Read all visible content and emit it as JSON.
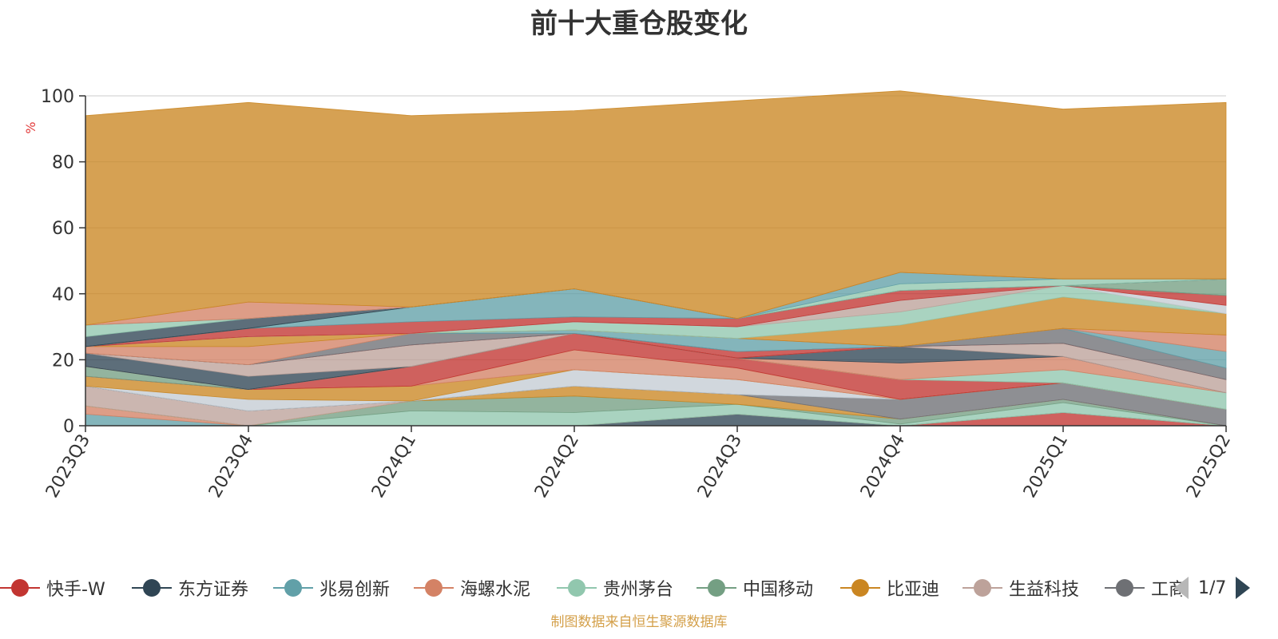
{
  "page": {
    "title": "前十大重仓股变化",
    "source_note": "制图数据来自恒生聚源数据库"
  },
  "legend": {
    "items": [
      {
        "label": "快手-W",
        "color": "#c23531"
      },
      {
        "label": "东方证券",
        "color": "#2f4554"
      },
      {
        "label": "兆易创新",
        "color": "#61a0a8"
      },
      {
        "label": "海螺水泥",
        "color": "#d48265"
      },
      {
        "label": "贵州茅台",
        "color": "#91c7ae"
      },
      {
        "label": "中国移动",
        "color": "#749f83"
      },
      {
        "label": "比亚迪",
        "color": "#ca8622"
      },
      {
        "label": "生益科技",
        "color": "#bda29a"
      },
      {
        "label": "工商",
        "color": "#6e7074"
      }
    ],
    "page_indicator": "1/7"
  },
  "chart_data": {
    "type": "area",
    "title": "前十大重仓股变化",
    "ylabel": "%",
    "ylim": [
      0,
      100
    ],
    "yticks": [
      0,
      20,
      40,
      60,
      80,
      100
    ],
    "grid": true,
    "stacked": true,
    "categories": [
      "2023Q3",
      "2023Q4",
      "2024Q1",
      "2024Q2",
      "2024Q3",
      "2024Q4",
      "2025Q1",
      "2025Q2"
    ],
    "series": [
      {
        "color": "#c23531",
        "values": [
          0,
          0,
          0,
          0,
          0,
          0,
          4,
          0
        ]
      },
      {
        "color": "#2f4554",
        "values": [
          0,
          0,
          0,
          0,
          3.5,
          0,
          0,
          0
        ]
      },
      {
        "color": "#61a0a8",
        "values": [
          3.5,
          0,
          0,
          0,
          0,
          0,
          0,
          0
        ]
      },
      {
        "color": "#d48265",
        "values": [
          2.5,
          0,
          0,
          0,
          0,
          0,
          0,
          0
        ]
      },
      {
        "color": "#91c7ae",
        "values": [
          0,
          0,
          4.5,
          4,
          3,
          0.5,
          3,
          0
        ]
      },
      {
        "color": "#749f83",
        "values": [
          0,
          0,
          3,
          5,
          0,
          1.5,
          1,
          0
        ]
      },
      {
        "color": "#ca8622",
        "values": [
          0,
          0,
          0,
          3,
          3,
          0,
          0,
          0
        ]
      },
      {
        "color": "#bda29a",
        "values": [
          6,
          4.5,
          0,
          0,
          0,
          0,
          0,
          0
        ]
      },
      {
        "color": "#6e7074",
        "values": [
          0,
          0,
          0,
          0,
          0,
          6,
          5,
          5
        ]
      },
      {
        "color": "#546570",
        "values": [
          0,
          0,
          0,
          0,
          0,
          0,
          0,
          0
        ]
      },
      {
        "color": "#c4ccd3",
        "values": [
          0,
          3.5,
          0,
          5,
          4.5,
          0,
          0,
          0
        ]
      },
      {
        "color": "#ca8622",
        "values": [
          3,
          3,
          4.5,
          0,
          0,
          0,
          0,
          0
        ]
      },
      {
        "color": "#d48265",
        "values": [
          0,
          0,
          0,
          6,
          3.5,
          0,
          0,
          0
        ]
      },
      {
        "color": "#c23531",
        "values": [
          0,
          0,
          6,
          5,
          3,
          6,
          0,
          0
        ]
      },
      {
        "color": "#749f83",
        "values": [
          3,
          0,
          0,
          0,
          0,
          0,
          0,
          0
        ]
      },
      {
        "color": "#91c7ae",
        "values": [
          0,
          0,
          0,
          0,
          0,
          0,
          4,
          5
        ]
      },
      {
        "color": "#d48265",
        "values": [
          0,
          0,
          0,
          0,
          0,
          5,
          4,
          0
        ]
      },
      {
        "color": "#2f4554",
        "values": [
          4,
          4,
          0,
          0,
          0,
          5,
          0,
          0
        ]
      },
      {
        "color": "#bda29a",
        "values": [
          0,
          3.5,
          6.5,
          0,
          0,
          0,
          4,
          4
        ]
      },
      {
        "color": "#c23531",
        "values": [
          0,
          0,
          0,
          0,
          2,
          0,
          0,
          0
        ]
      },
      {
        "color": "#6e7074",
        "values": [
          0,
          0,
          3.5,
          0,
          0,
          0,
          4.5,
          3.5
        ]
      },
      {
        "color": "#61a0a8",
        "values": [
          0,
          0,
          0,
          1,
          4,
          0,
          0,
          5
        ]
      },
      {
        "color": "#d48265",
        "values": [
          2,
          5.5,
          0,
          0,
          0,
          0,
          0,
          5
        ]
      },
      {
        "color": "#ca8622",
        "values": [
          0,
          3,
          0,
          0,
          0,
          6.5,
          9.5,
          6.5
        ]
      },
      {
        "color": "#91c7ae",
        "values": [
          0,
          0,
          0,
          2.5,
          3.5,
          4,
          3.5,
          0
        ]
      },
      {
        "color": "#bda29a",
        "values": [
          0,
          0,
          0,
          0,
          0,
          3.5,
          0,
          0
        ]
      },
      {
        "color": "#c4ccd3",
        "values": [
          0,
          0,
          0,
          0,
          0,
          0,
          0,
          2.5
        ]
      },
      {
        "color": "#c23531",
        "values": [
          0,
          2.5,
          3.5,
          1.5,
          2.5,
          3,
          0,
          3
        ]
      },
      {
        "color": "#61a0a8",
        "values": [
          0,
          0,
          4.5,
          8.5,
          0,
          0,
          0,
          0
        ]
      },
      {
        "color": "#749f83",
        "values": [
          0,
          0,
          0,
          0,
          0,
          0,
          0,
          5
        ]
      },
      {
        "color": "#2f4554",
        "values": [
          3,
          3,
          0,
          0,
          0,
          0,
          0,
          0
        ]
      },
      {
        "color": "#91c7ae",
        "values": [
          3.5,
          0,
          0,
          0,
          0,
          2,
          2,
          0
        ]
      },
      {
        "color": "#61a0a8",
        "values": [
          0,
          0,
          0,
          0,
          0,
          3.5,
          0,
          0
        ]
      },
      {
        "color": "#d48265",
        "values": [
          0,
          5,
          0,
          0,
          0,
          0,
          0,
          0
        ]
      },
      {
        "color": "#ca8622",
        "values": [
          63.5,
          60.5,
          58,
          54,
          66,
          55,
          51.5,
          53.5
        ]
      }
    ]
  }
}
